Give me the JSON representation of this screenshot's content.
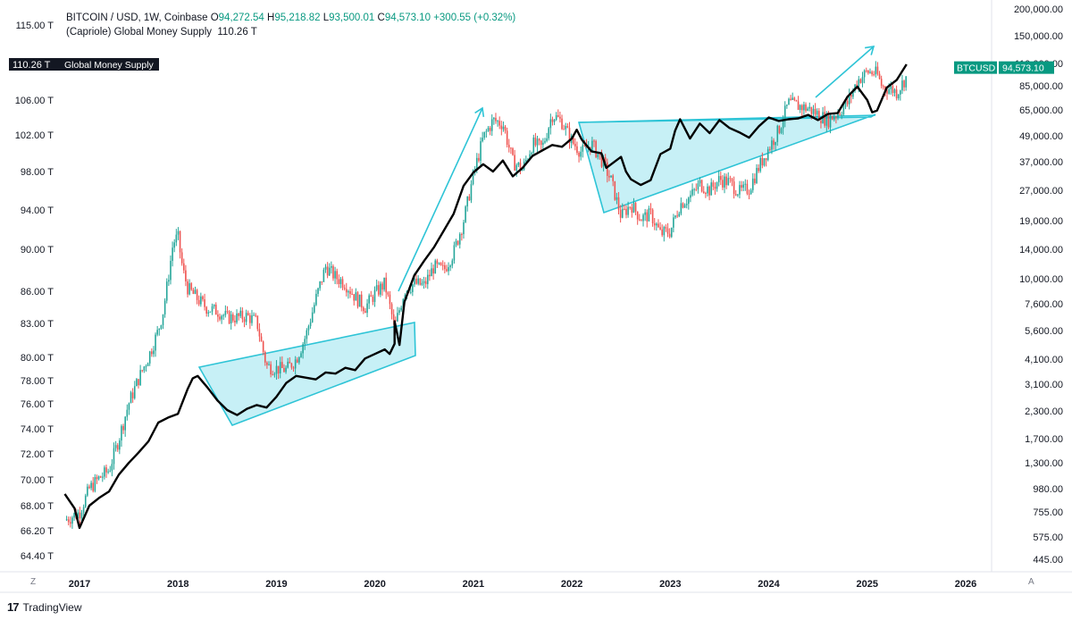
{
  "header": {
    "symbol_line": "BITCOIN / USD, 1W, Coinbase",
    "o_label": "O",
    "o_value": "94,272.54",
    "h_label": "H",
    "h_value": "95,218.82",
    "l_label": "L",
    "l_value": "93,500.01",
    "c_label": "C",
    "c_value": "94,573.10",
    "change": "+300.55 (+0.32%)",
    "indicator_name": "(Capriole) Global Money Supply",
    "indicator_value": "110.26 T"
  },
  "footer": {
    "brand": "TradingView",
    "left_corner": "Z",
    "right_corner": "A"
  },
  "chart_data": {
    "type": "line",
    "title": "BITCOIN / USD, 1W, Coinbase vs (Capriole) Global Money Supply",
    "x_axis": {
      "range": [
        2016.75,
        2026.3
      ],
      "tick_labels": [
        "2017",
        "2018",
        "2019",
        "2020",
        "2021",
        "2022",
        "2023",
        "2024",
        "2025",
        "2026"
      ],
      "tick_values": [
        2017,
        2018,
        2019,
        2020,
        2021,
        2022,
        2023,
        2024,
        2025,
        2026
      ]
    },
    "y_left": {
      "unit": "T",
      "range": [
        64.4,
        115.0
      ],
      "tick_labels": [
        "115.00 T",
        "110.26 T",
        "106.00 T",
        "102.00 T",
        "98.00 T",
        "94.00 T",
        "90.00 T",
        "86.00 T",
        "83.00 T",
        "80.00 T",
        "78.00 T",
        "76.00 T",
        "74.00 T",
        "72.00 T",
        "70.00 T",
        "68.00 T",
        "66.20 T",
        "64.40 T"
      ]
    },
    "y_right": {
      "scale": "log",
      "range": [
        445,
        200000
      ],
      "tick_labels": [
        "200,000.00",
        "150,000.00",
        "110,000.00",
        "85,000.00",
        "65,000.00",
        "49,000.00",
        "37,000.00",
        "27,000.00",
        "19,000.00",
        "14,000.00",
        "10,000.00",
        "7,600.00",
        "5,600.00",
        "4,100.00",
        "3,100.00",
        "2,300.00",
        "1,700.00",
        "1,300.00",
        "980.00",
        "755.00",
        "575.00",
        "445.00"
      ]
    },
    "series": [
      {
        "name": "Global Money Supply",
        "axis": "left",
        "color": "#000000",
        "current_label": "110.26 T",
        "legend": "Global Money Supply",
        "points": [
          [
            2016.85,
            68.9
          ],
          [
            2016.95,
            67.8
          ],
          [
            2017.0,
            66.4
          ],
          [
            2017.1,
            68.0
          ],
          [
            2017.2,
            68.6
          ],
          [
            2017.3,
            69.1
          ],
          [
            2017.4,
            70.4
          ],
          [
            2017.5,
            71.3
          ],
          [
            2017.6,
            72.1
          ],
          [
            2017.7,
            73.0
          ],
          [
            2017.8,
            74.5
          ],
          [
            2017.9,
            74.9
          ],
          [
            2018.0,
            75.2
          ],
          [
            2018.1,
            77.3
          ],
          [
            2018.15,
            78.2
          ],
          [
            2018.2,
            78.4
          ],
          [
            2018.3,
            77.4
          ],
          [
            2018.4,
            76.3
          ],
          [
            2018.5,
            75.5
          ],
          [
            2018.6,
            75.1
          ],
          [
            2018.7,
            75.6
          ],
          [
            2018.8,
            75.9
          ],
          [
            2018.9,
            75.7
          ],
          [
            2019.0,
            76.6
          ],
          [
            2019.1,
            77.8
          ],
          [
            2019.2,
            78.4
          ],
          [
            2019.4,
            78.1
          ],
          [
            2019.5,
            78.7
          ],
          [
            2019.6,
            78.6
          ],
          [
            2019.7,
            79.1
          ],
          [
            2019.8,
            78.9
          ],
          [
            2019.9,
            79.9
          ],
          [
            2020.0,
            80.3
          ],
          [
            2020.1,
            80.7
          ],
          [
            2020.15,
            80.3
          ],
          [
            2020.2,
            81.2
          ],
          [
            2020.2,
            83.2
          ],
          [
            2020.25,
            81.1
          ],
          [
            2020.3,
            85.0
          ],
          [
            2020.4,
            87.5
          ],
          [
            2020.5,
            88.9
          ],
          [
            2020.6,
            90.2
          ],
          [
            2020.7,
            91.9
          ],
          [
            2020.8,
            93.6
          ],
          [
            2020.9,
            96.5
          ],
          [
            2021.0,
            97.9
          ],
          [
            2021.1,
            98.8
          ],
          [
            2021.2,
            98.0
          ],
          [
            2021.3,
            99.2
          ],
          [
            2021.4,
            97.5
          ],
          [
            2021.5,
            98.4
          ],
          [
            2021.6,
            99.7
          ],
          [
            2021.7,
            100.3
          ],
          [
            2021.8,
            100.9
          ],
          [
            2021.9,
            100.7
          ],
          [
            2022.0,
            101.6
          ],
          [
            2022.05,
            102.6
          ],
          [
            2022.1,
            101.5
          ],
          [
            2022.2,
            100.2
          ],
          [
            2022.3,
            100.0
          ],
          [
            2022.35,
            98.4
          ],
          [
            2022.4,
            98.8
          ],
          [
            2022.5,
            99.6
          ],
          [
            2022.55,
            98.0
          ],
          [
            2022.6,
            97.2
          ],
          [
            2022.7,
            96.6
          ],
          [
            2022.8,
            97.1
          ],
          [
            2022.9,
            99.9
          ],
          [
            2023.0,
            100.5
          ],
          [
            2023.05,
            102.5
          ],
          [
            2023.1,
            103.8
          ],
          [
            2023.2,
            101.6
          ],
          [
            2023.3,
            103.3
          ],
          [
            2023.4,
            102.2
          ],
          [
            2023.5,
            103.7
          ],
          [
            2023.6,
            102.8
          ],
          [
            2023.7,
            102.3
          ],
          [
            2023.8,
            101.7
          ],
          [
            2023.9,
            103.0
          ],
          [
            2024.0,
            104.0
          ],
          [
            2024.1,
            103.6
          ],
          [
            2024.2,
            103.8
          ],
          [
            2024.3,
            103.9
          ],
          [
            2024.4,
            104.3
          ],
          [
            2024.5,
            103.7
          ],
          [
            2024.6,
            104.4
          ],
          [
            2024.7,
            104.5
          ],
          [
            2024.8,
            106.4
          ],
          [
            2024.9,
            107.6
          ],
          [
            2025.0,
            106.0
          ],
          [
            2025.05,
            104.6
          ],
          [
            2025.1,
            104.8
          ],
          [
            2025.2,
            107.5
          ],
          [
            2025.3,
            108.4
          ],
          [
            2025.4,
            110.26
          ]
        ]
      },
      {
        "name": "BTCUSD",
        "axis": "right",
        "color_up": "#26a69a",
        "color_down": "#ef5350",
        "current_label": "BTCUSD",
        "current_value": "94,573.10",
        "points": [
          [
            2016.85,
            690
          ],
          [
            2017.0,
            750
          ],
          [
            2017.1,
            980
          ],
          [
            2017.2,
            1100
          ],
          [
            2017.3,
            1200
          ],
          [
            2017.4,
            1700
          ],
          [
            2017.5,
            2500
          ],
          [
            2017.6,
            3300
          ],
          [
            2017.7,
            4200
          ],
          [
            2017.8,
            5600
          ],
          [
            2017.85,
            7000
          ],
          [
            2017.9,
            10000
          ],
          [
            2017.95,
            15000
          ],
          [
            2018.0,
            16000
          ],
          [
            2018.05,
            11000
          ],
          [
            2018.1,
            9000
          ],
          [
            2018.2,
            8000
          ],
          [
            2018.3,
            7200
          ],
          [
            2018.4,
            7000
          ],
          [
            2018.5,
            6500
          ],
          [
            2018.6,
            6500
          ],
          [
            2018.7,
            6600
          ],
          [
            2018.8,
            6200
          ],
          [
            2018.85,
            4800
          ],
          [
            2018.9,
            3800
          ],
          [
            2019.0,
            3700
          ],
          [
            2019.1,
            3650
          ],
          [
            2019.2,
            4100
          ],
          [
            2019.3,
            5300
          ],
          [
            2019.4,
            8000
          ],
          [
            2019.5,
            11500
          ],
          [
            2019.6,
            10200
          ],
          [
            2019.7,
            9500
          ],
          [
            2019.8,
            8200
          ],
          [
            2019.9,
            7300
          ],
          [
            2020.0,
            8500
          ],
          [
            2020.1,
            9500
          ],
          [
            2020.2,
            5800
          ],
          [
            2020.3,
            8800
          ],
          [
            2020.4,
            9500
          ],
          [
            2020.5,
            9300
          ],
          [
            2020.6,
            11500
          ],
          [
            2020.7,
            11000
          ],
          [
            2020.8,
            13500
          ],
          [
            2020.9,
            19000
          ],
          [
            2021.0,
            32000
          ],
          [
            2021.1,
            48000
          ],
          [
            2021.2,
            58000
          ],
          [
            2021.3,
            56000
          ],
          [
            2021.4,
            37000
          ],
          [
            2021.5,
            34000
          ],
          [
            2021.6,
            45000
          ],
          [
            2021.7,
            43000
          ],
          [
            2021.8,
            62000
          ],
          [
            2021.9,
            57000
          ],
          [
            2022.0,
            46000
          ],
          [
            2022.1,
            41000
          ],
          [
            2022.2,
            45000
          ],
          [
            2022.3,
            38000
          ],
          [
            2022.4,
            30000
          ],
          [
            2022.5,
            20000
          ],
          [
            2022.6,
            23000
          ],
          [
            2022.7,
            19500
          ],
          [
            2022.8,
            20500
          ],
          [
            2022.9,
            16500
          ],
          [
            2023.0,
            17000
          ],
          [
            2023.1,
            23000
          ],
          [
            2023.2,
            25000
          ],
          [
            2023.3,
            29000
          ],
          [
            2023.4,
            27000
          ],
          [
            2023.5,
            30500
          ],
          [
            2023.6,
            29500
          ],
          [
            2023.7,
            26500
          ],
          [
            2023.8,
            27500
          ],
          [
            2023.9,
            35000
          ],
          [
            2024.0,
            43000
          ],
          [
            2024.1,
            52000
          ],
          [
            2024.2,
            70000
          ],
          [
            2024.3,
            68000
          ],
          [
            2024.4,
            66000
          ],
          [
            2024.5,
            62000
          ],
          [
            2024.6,
            58000
          ],
          [
            2024.7,
            63000
          ],
          [
            2024.8,
            70000
          ],
          [
            2024.9,
            90000
          ],
          [
            2025.0,
            100000
          ],
          [
            2025.1,
            98000
          ],
          [
            2025.15,
            84000
          ],
          [
            2025.25,
            82000
          ],
          [
            2025.3,
            79000
          ],
          [
            2025.4,
            94573
          ]
        ]
      }
    ],
    "annotations": [
      "cyan rising wedge 2018–2020",
      "arrow up 2020–2021",
      "cyan wedge 2022–2024",
      "arrow up 2024–2025"
    ]
  }
}
